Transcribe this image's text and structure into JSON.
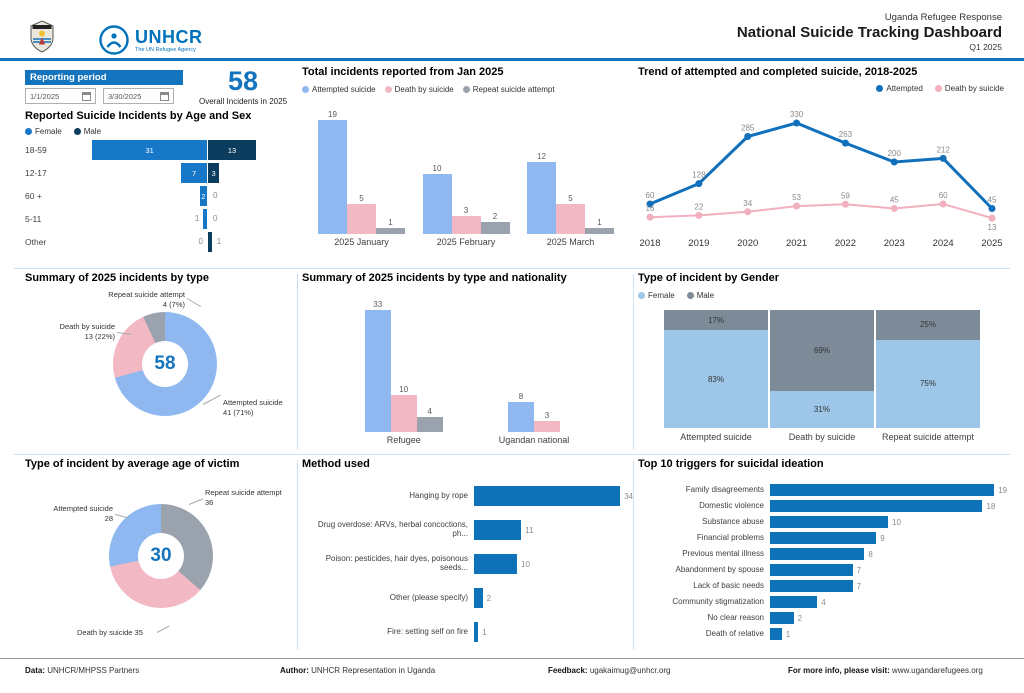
{
  "header": {
    "org_name": "UNHCR",
    "org_tagline": "The UN Refugee Agency",
    "report_org": "Uganda Refugee Response",
    "title": "National Suicide Tracking Dashboard",
    "period": "Q1 2025"
  },
  "filters": {
    "label": "Reporting period",
    "start_date": "1/1/2025",
    "end_date": "3/30/2025"
  },
  "kpi": {
    "value": "58",
    "label": "Overall Incidents in 2025"
  },
  "colors": {
    "accent": "#1474BD",
    "light_blue": "#8FB8F0",
    "pink": "#F2B8C4",
    "gray": "#9AA2AD",
    "tornado_female": "#1878C8",
    "tornado_male": "#0D3D5E",
    "line_attempted": "#1170BB",
    "line_death": "#F2B0BE",
    "gender_female": "#9DC6E8",
    "gender_male": "#7D8B98",
    "bar_dark_blue": "#0E72B9"
  },
  "chart_data": [
    {
      "id": "age_sex",
      "type": "bar",
      "orientation": "horizontal-diverging",
      "title": "Reported Suicide Incidents by Age and Sex",
      "categories": [
        "18-59",
        "12-17",
        "60 +",
        "5-11",
        "Other"
      ],
      "series": [
        {
          "name": "Female",
          "color": "tornado_female",
          "values": [
            31,
            7,
            2,
            1,
            0
          ]
        },
        {
          "name": "Male",
          "color": "tornado_male",
          "values": [
            13,
            3,
            0,
            0,
            1
          ]
        }
      ],
      "legend_position": "top"
    },
    {
      "id": "monthly",
      "type": "bar",
      "title": "Total incidents reported from Jan 2025",
      "categories": [
        "2025 January",
        "2025 February",
        "2025 March"
      ],
      "series": [
        {
          "name": "Attempted suicide",
          "color": "light_blue",
          "values": [
            19,
            10,
            12
          ]
        },
        {
          "name": "Death by suicide",
          "color": "pink",
          "values": [
            5,
            3,
            5
          ]
        },
        {
          "name": "Repeat suicide attempt",
          "color": "gray",
          "values": [
            1,
            2,
            1
          ]
        }
      ],
      "legend_position": "top"
    },
    {
      "id": "trend",
      "type": "line",
      "title": "Trend of attempted and completed suicide, 2018-2025",
      "x": [
        "2018",
        "2019",
        "2020",
        "2021",
        "2022",
        "2023",
        "2024",
        "2025"
      ],
      "series": [
        {
          "name": "Attempted",
          "color": "line_attempted",
          "values": [
            60,
            128,
            285,
            330,
            263,
            200,
            212,
            45
          ]
        },
        {
          "name": "Death by suicide",
          "color": "line_death",
          "values": [
            16,
            22,
            34,
            53,
            59,
            45,
            60,
            13
          ]
        }
      ],
      "ylim": [
        0,
        360
      ],
      "legend_position": "top-right",
      "grid": false
    },
    {
      "id": "type_summary",
      "type": "pie",
      "title": "Summary of 2025 incidents by type",
      "center_value": "58",
      "slices": [
        {
          "label": "Attempted suicide",
          "value": 41,
          "display": "41 (71%)",
          "color": "light_blue"
        },
        {
          "label": "Death by suicide",
          "value": 13,
          "display": "13 (22%)",
          "color": "pink"
        },
        {
          "label": "Repeat suicide attempt",
          "value": 4,
          "display": "4 (7%)",
          "color": "gray"
        }
      ]
    },
    {
      "id": "nationality",
      "type": "bar",
      "title": "Summary of 2025 incidents by type and nationality",
      "categories": [
        "Refugee",
        "Ugandan national"
      ],
      "series": [
        {
          "name": "Attempted suicide",
          "color": "light_blue",
          "values": [
            33,
            8
          ]
        },
        {
          "name": "Death by suicide",
          "color": "pink",
          "values": [
            10,
            3
          ]
        },
        {
          "name": "Repeat suicide attempt",
          "color": "gray",
          "values": [
            4,
            null
          ]
        }
      ]
    },
    {
      "id": "gender",
      "type": "bar",
      "stacked": "percent",
      "title": "Type of incident by Gender",
      "categories": [
        "Attempted suicide",
        "Death by suicide",
        "Repeat suicide attempt"
      ],
      "series": [
        {
          "name": "Female",
          "color": "gender_female",
          "values": [
            83,
            31,
            75
          ]
        },
        {
          "name": "Male",
          "color": "gender_male",
          "values": [
            17,
            69,
            25
          ]
        }
      ],
      "value_suffix": "%",
      "legend_position": "top"
    },
    {
      "id": "avg_age",
      "type": "pie",
      "title": "Type of incident by average age of victim",
      "center_value": "30",
      "slices": [
        {
          "label": "Repeat suicide attempt",
          "value": 36,
          "display": "36",
          "color": "gray"
        },
        {
          "label": "Death by suicide",
          "value": 35,
          "display": "35",
          "color": "pink"
        },
        {
          "label": "Attempted suicide",
          "value": 28,
          "display": "28",
          "color": "light_blue"
        }
      ]
    },
    {
      "id": "method",
      "type": "bar",
      "orientation": "horizontal",
      "title": "Method used",
      "categories": [
        "Hanging by rope",
        "Drug overdose: ARVs, herbal concoctions, ph...",
        "Poison: pesticides, hair dyes, poisonous seeds...",
        "Other (please specify)",
        "Fire: setting self on fire"
      ],
      "values": [
        34,
        11,
        10,
        2,
        1
      ],
      "color": "bar_dark_blue"
    },
    {
      "id": "triggers",
      "type": "bar",
      "orientation": "horizontal",
      "title": "Top 10 triggers for suicidal ideation",
      "categories": [
        "Family disagreements",
        "Domestic violence",
        "Substance abuse",
        "Financial problems",
        "Previous mental illness",
        "Abandonment by spouse",
        "Lack of basic needs",
        "Community stigmatization",
        "No clear reason",
        "Death of relative"
      ],
      "values": [
        19,
        18,
        10,
        9,
        8,
        7,
        7,
        4,
        2,
        1
      ],
      "color": "bar_dark_blue"
    }
  ],
  "footer": {
    "data_label": "Data:",
    "data_value": "UNHCR/MHPSS Partners",
    "author_label": "Author:",
    "author_value": "UNHCR Representation in Uganda",
    "feedback_label": "Feedback:",
    "feedback_value": "ugakaimug@unhcr.org",
    "info_label": "For more info, please visit:",
    "info_value": "www.ugandarefugees.org"
  }
}
